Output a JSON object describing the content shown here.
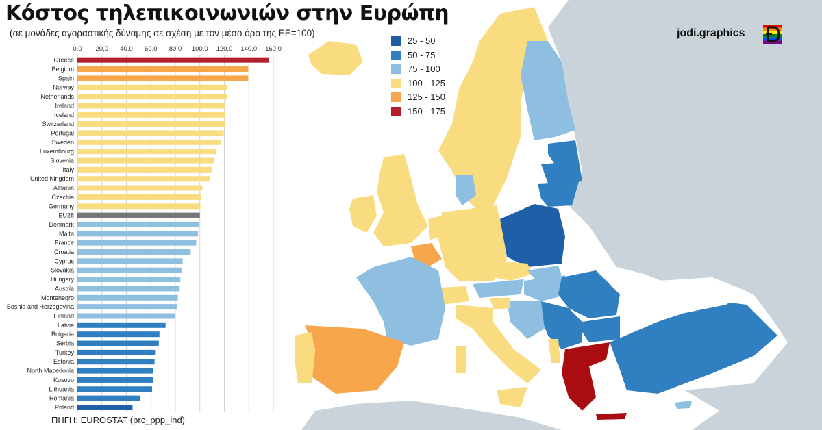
{
  "title": "Κόστος τηλεπικοινωνιών στην Ευρώπη",
  "subtitle": "(σε μονάδες αγοραστικής δύναμης σε σχέση με τον μέσο όρο της ΕΕ=100)",
  "brand": "jodi.graphics",
  "source_label": "ΠΗΓΗ: ",
  "source_name": "EUROSTAT",
  "source_code": " (prc_ppp_ind)",
  "legend": [
    {
      "label": "25 - 50",
      "color": "#1f5fa8"
    },
    {
      "label": "50 - 75",
      "color": "#2f7fc1"
    },
    {
      "label": "75 - 100",
      "color": "#8fbfe0"
    },
    {
      "label": "100 - 125",
      "color": "#f9dc80"
    },
    {
      "label": "125 - 150",
      "color": "#f7a64b"
    },
    {
      "label": "150 - 175",
      "color": "#b41f2d"
    }
  ],
  "chart_data": {
    "type": "bar",
    "orientation": "horizontal",
    "xlim": [
      0,
      160
    ],
    "x_ticks": [
      "0,0",
      "20,0",
      "40,0",
      "60,0",
      "80,0",
      "100,0",
      "120,0",
      "140,0",
      "160,0"
    ],
    "grid": true,
    "categories": [
      "Greece",
      "Belgium",
      "Spain",
      "Norway",
      "Netherlands",
      "Ireland",
      "Iceland",
      "Switzerland",
      "Portugal",
      "Sweden",
      "Luxembourg",
      "Slovenia",
      "Italy",
      "United Kingdom",
      "Albania",
      "Czechia",
      "Germany",
      "EU28",
      "Denmark",
      "Malta",
      "France",
      "Croatia",
      "Cyprus",
      "Slovakia",
      "Hungary",
      "Austria",
      "Montenegro",
      "Bosnia and Herzegovina",
      "Finland",
      "Latvia",
      "Bulgaria",
      "Serbia",
      "Turkey",
      "Estonia",
      "North Macedonia",
      "Kosovo",
      "Lithuania",
      "Romania",
      "Poland"
    ],
    "values": [
      156.5,
      139.5,
      139.5,
      122.5,
      122,
      121,
      120.5,
      120.5,
      119.5,
      117.5,
      113,
      111.5,
      110,
      108.5,
      102,
      101,
      100.5,
      100,
      99.5,
      98.5,
      97,
      92.5,
      86,
      85,
      84,
      83.5,
      82,
      81.5,
      80,
      72,
      67,
      66.5,
      64,
      63,
      62,
      62,
      61,
      51,
      45
    ],
    "bar_colors": [
      "#b41f2d",
      "#f7a64b",
      "#f7a64b",
      "#f9dc80",
      "#f9dc80",
      "#f9dc80",
      "#f9dc80",
      "#f9dc80",
      "#f9dc80",
      "#f9dc80",
      "#f9dc80",
      "#f9dc80",
      "#f9dc80",
      "#f9dc80",
      "#f9dc80",
      "#f9dc80",
      "#f9dc80",
      "#777777",
      "#8fbfe0",
      "#8fbfe0",
      "#8fbfe0",
      "#8fbfe0",
      "#8fbfe0",
      "#8fbfe0",
      "#8fbfe0",
      "#8fbfe0",
      "#8fbfe0",
      "#8fbfe0",
      "#8fbfe0",
      "#2f7fc1",
      "#2f7fc1",
      "#2f7fc1",
      "#2f7fc1",
      "#2f7fc1",
      "#2f7fc1",
      "#2f7fc1",
      "#2f7fc1",
      "#2f7fc1",
      "#1f5fa8"
    ]
  }
}
